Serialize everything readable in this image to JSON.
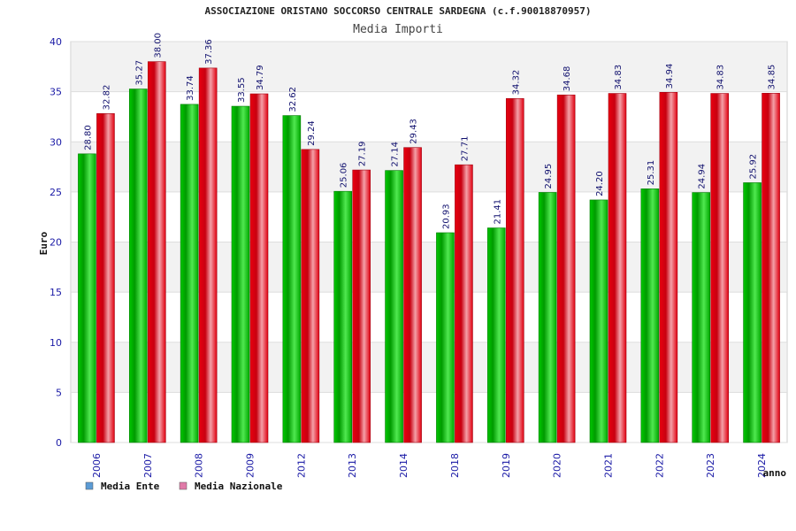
{
  "chart_data": {
    "type": "bar",
    "title": "ASSOCIAZIONE ORISTANO SOCCORSO CENTRALE SARDEGNA (c.f.90018870957)",
    "subtitle": "Media Importi",
    "xlabel": "anno",
    "ylabel": "Euro",
    "ylim": [
      0,
      40
    ],
    "yticks": [
      0,
      5,
      10,
      15,
      20,
      25,
      30,
      35,
      40
    ],
    "grid": true,
    "legend_position": "bottom-left",
    "categories": [
      "2006",
      "2007",
      "2008",
      "2009",
      "2012",
      "2013",
      "2014",
      "2018",
      "2019",
      "2020",
      "2021",
      "2022",
      "2023",
      "2024"
    ],
    "series": [
      {
        "name": "Media Ente",
        "legend_color": "#5b9bd5",
        "bar_color": "#00b000",
        "values": [
          28.8,
          35.27,
          33.74,
          33.55,
          32.62,
          25.06,
          27.14,
          20.93,
          21.41,
          24.95,
          24.2,
          25.31,
          24.94,
          25.92
        ],
        "labels": [
          "28.80",
          "35.27",
          "33.74",
          "33.55",
          "32.62",
          "25.06",
          "27.14",
          "20.93",
          "21.41",
          "24.95",
          "24.20",
          "25.31",
          "24.94",
          "25.92"
        ]
      },
      {
        "name": "Media Nazionale",
        "legend_color": "#e07aa8",
        "bar_color": "#e00010",
        "values": [
          32.82,
          38.0,
          37.36,
          34.79,
          29.24,
          27.19,
          29.43,
          27.71,
          34.32,
          34.68,
          34.83,
          34.94,
          34.83,
          34.85
        ],
        "labels": [
          "32.82",
          "38.00",
          "37.36",
          "34.79",
          "29.24",
          "27.19",
          "29.43",
          "27.71",
          "34.32",
          "34.68",
          "34.83",
          "34.94",
          "34.83",
          "34.85"
        ]
      }
    ]
  }
}
